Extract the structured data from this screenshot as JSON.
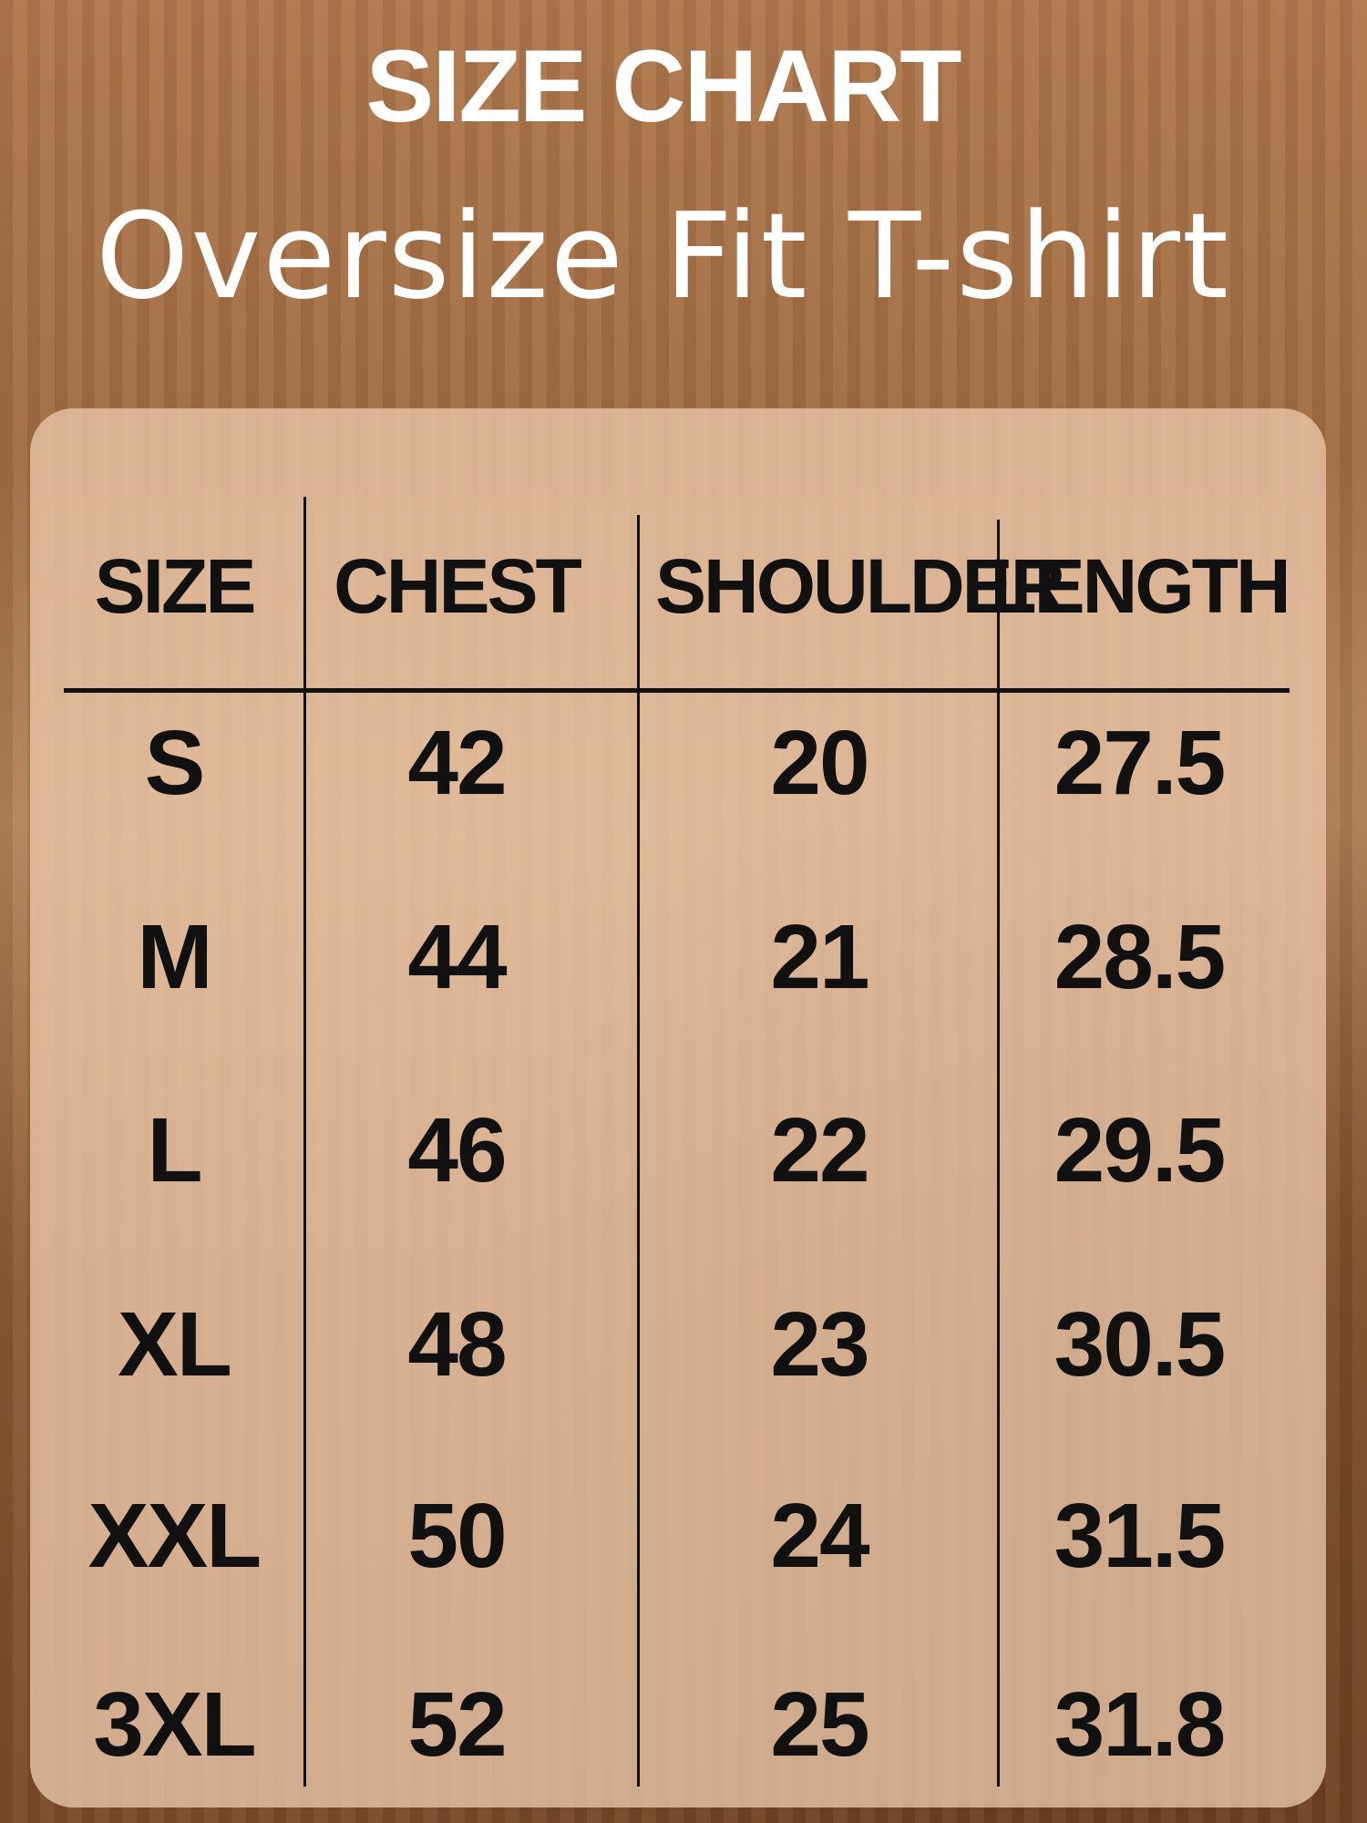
{
  "title": "SIZE CHART",
  "subtitle": "Oversize Fit T-shirt",
  "table": {
    "headers": [
      "SIZE",
      "CHEST",
      "SHOULDER",
      "LENGTH"
    ],
    "rows": [
      [
        "S",
        "42",
        "20",
        "27.5"
      ],
      [
        "M",
        "44",
        "21",
        "28.5"
      ],
      [
        "L",
        "46",
        "22",
        "29.5"
      ],
      [
        "XL",
        "48",
        "23",
        "30.5"
      ],
      [
        "XXL",
        "50",
        "24",
        "31.5"
      ],
      [
        "3XL",
        "52",
        "25",
        "31.8"
      ]
    ]
  }
}
